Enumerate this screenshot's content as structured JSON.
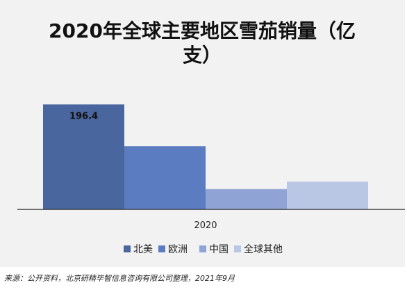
{
  "chart_data": {
    "type": "bar",
    "title": "2020年全球主要地区雪茄销量（亿支）",
    "categories": [
      "2020"
    ],
    "series": [
      {
        "name": "北美",
        "values": [
          196.4
        ],
        "label": "196.4",
        "color": "#4a669f"
      },
      {
        "name": "欧洲",
        "values": [
          118
        ],
        "label": "",
        "color": "#5b7cc0"
      },
      {
        "name": "中国",
        "values": [
          38
        ],
        "label": "",
        "color": "#8fa4d5"
      },
      {
        "name": "全球其他",
        "values": [
          52
        ],
        "label": "",
        "color": "#b9c6e4"
      }
    ],
    "ylim": [
      0,
      210
    ],
    "grid": false,
    "legend_position": "bottom"
  },
  "source": "来源：公开资料，北京研精毕智信息咨询有限公司整理，2021年9月"
}
